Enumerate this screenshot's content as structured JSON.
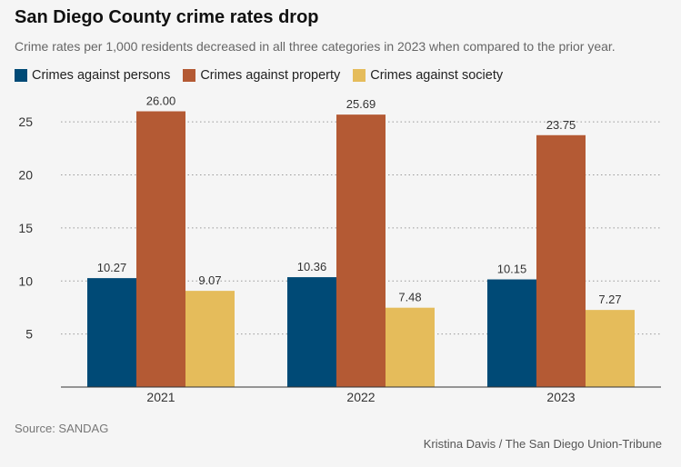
{
  "header": {
    "title": "San Diego County crime rates drop",
    "subtitle": "Crime rates per 1,000 residents decreased in all three categories in 2023 when compared to the prior year."
  },
  "legend": [
    {
      "label": "Crimes against persons",
      "color": "#004a76"
    },
    {
      "label": "Crimes against property",
      "color": "#b45a34"
    },
    {
      "label": "Crimes against society",
      "color": "#e5bc5b"
    }
  ],
  "chart_data": {
    "type": "bar",
    "title": "San Diego County crime rates drop",
    "subtitle": "Crime rates per 1,000 residents decreased in all three categories in 2023 when compared to the prior year.",
    "categories": [
      "2021",
      "2022",
      "2023"
    ],
    "series": [
      {
        "name": "Crimes against persons",
        "color": "#004a76",
        "values": [
          10.27,
          10.36,
          10.15
        ],
        "labels": [
          "10.27",
          "10.36",
          "10.15"
        ]
      },
      {
        "name": "Crimes against property",
        "color": "#b45a34",
        "values": [
          26.0,
          25.69,
          23.75
        ],
        "labels": [
          "26.00",
          "25.69",
          "23.75"
        ]
      },
      {
        "name": "Crimes against society",
        "color": "#e5bc5b",
        "values": [
          9.07,
          7.48,
          7.27
        ],
        "labels": [
          "9.07",
          "7.48",
          "7.27"
        ]
      }
    ],
    "yticks": [
      5,
      10,
      15,
      20,
      25
    ],
    "ylim": [
      0,
      27.5
    ],
    "xlabel": "",
    "ylabel": "",
    "grid": true,
    "legend_position": "top-left"
  },
  "footer": {
    "source": "Source: SANDAG",
    "credit": "Kristina Davis / The San Diego Union-Tribune"
  }
}
